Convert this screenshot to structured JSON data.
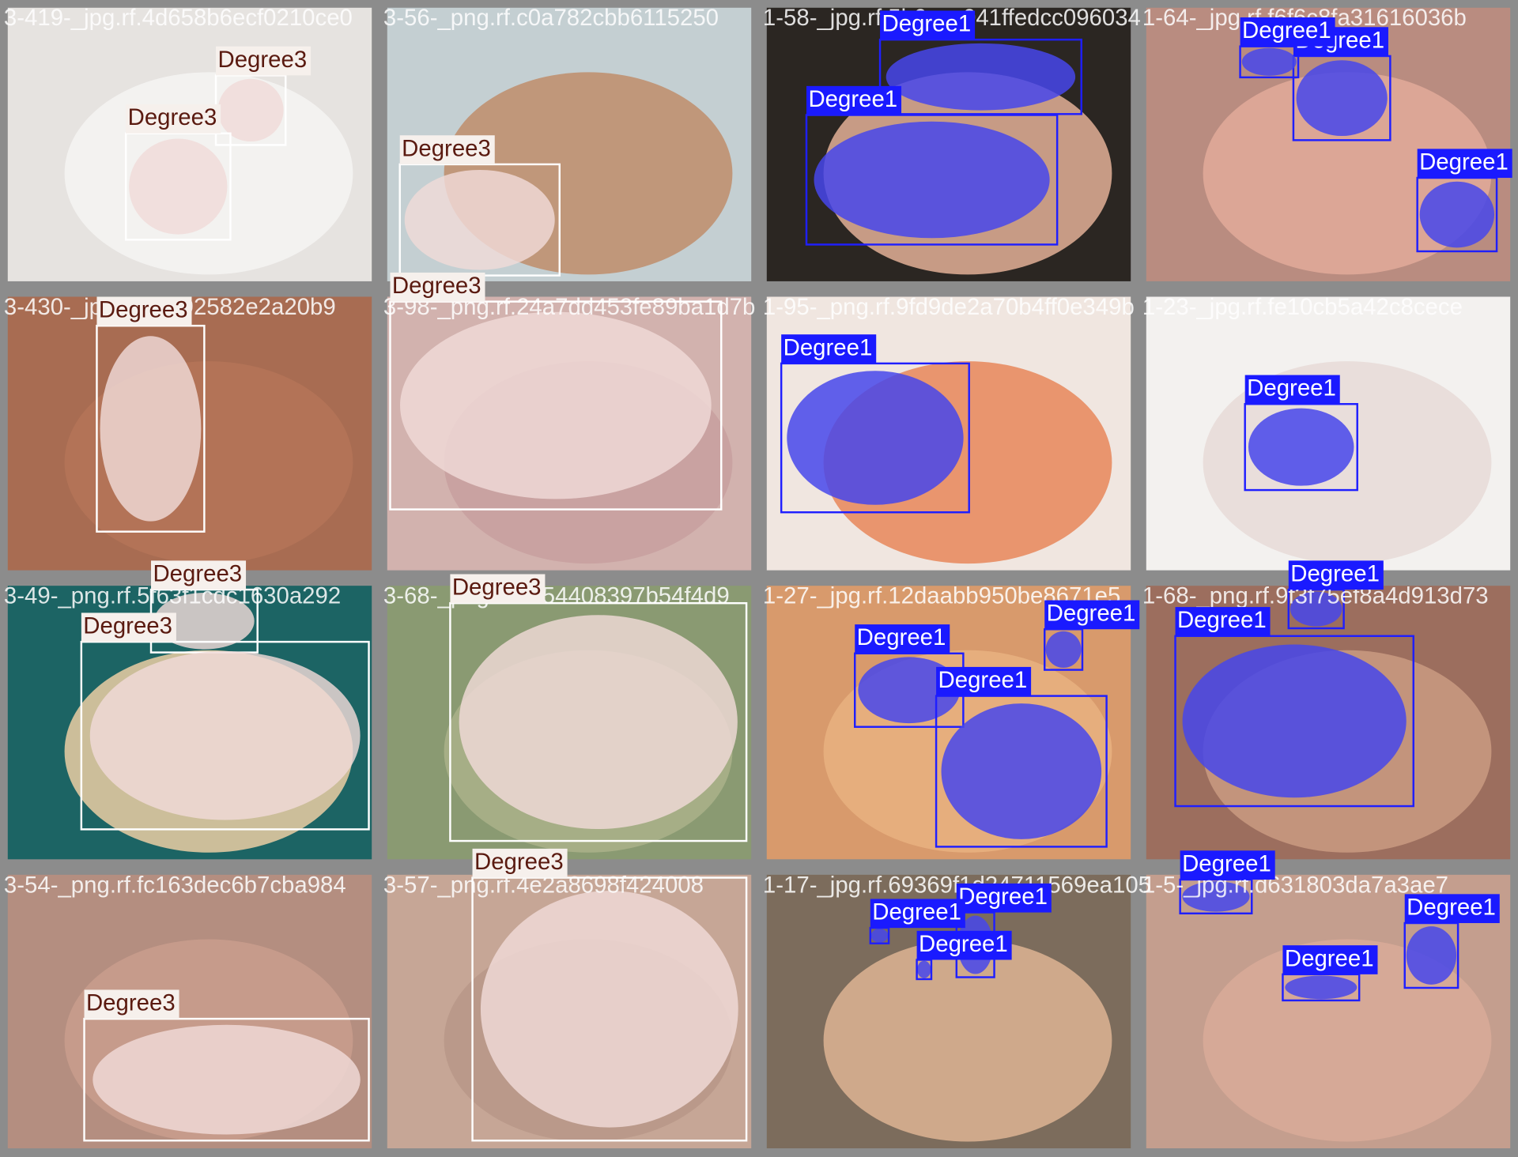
{
  "tiles": [
    {
      "filename": "3-419-_jpg.rf.4d658b6ecf0210ce0",
      "detections": [
        {
          "label": "Degree3"
        },
        {
          "label": "Degree3"
        }
      ]
    },
    {
      "filename": "3-56-_png.rf.c0a782cbb6115250",
      "detections": [
        {
          "label": "Degree3"
        }
      ]
    },
    {
      "filename": "1-58-_jpg.rf.5b0cec041ffedcc096034",
      "detections": [
        {
          "label": "Degree1"
        },
        {
          "label": "Degree1"
        }
      ]
    },
    {
      "filename": "1-64-_jpg.rf.f6f6c8fa31616036b",
      "detections": [
        {
          "label": "Degree1"
        },
        {
          "label": "Degree1"
        },
        {
          "label": "Degree1"
        }
      ]
    },
    {
      "filename": "3-430-_jpg.rf.9e392582e2a20b9",
      "detections": [
        {
          "label": "Degree3"
        }
      ]
    },
    {
      "filename": "3-98-_png.rf.24a7dd453fe89ba1d7b",
      "detections": [
        {
          "label": "Degree3"
        }
      ]
    },
    {
      "filename": "1-95-_png.rf.9fd9de2a70b4ff0e349b",
      "detections": [
        {
          "label": "Degree1"
        }
      ]
    },
    {
      "filename": "1-23-_jpg.rf.fe10cb5a42c8cece",
      "detections": [
        {
          "label": "Degree1"
        }
      ]
    },
    {
      "filename": "3-49-_png.rf.5f63f1cdc1630a292",
      "detections": [
        {
          "label": "Degree3"
        },
        {
          "label": "Degree3"
        }
      ]
    },
    {
      "filename": "3-68-_png.rf.ab54408397b54f4d9",
      "detections": [
        {
          "label": "Degree3"
        }
      ]
    },
    {
      "filename": "1-27-_jpg.rf.12daabb950be8671e5",
      "detections": [
        {
          "label": "Degree1"
        },
        {
          "label": "Degree1"
        },
        {
          "label": "Degree1"
        }
      ]
    },
    {
      "filename": "1-68-_png.rf.9f3f75ef8a4d913d73",
      "detections": [
        {
          "label": "Degree1"
        },
        {
          "label": "Degree1"
        }
      ]
    },
    {
      "filename": "3-54-_png.rf.fc163dec6b7cba984",
      "detections": [
        {
          "label": "Degree3"
        }
      ]
    },
    {
      "filename": "3-57-_png.rf.4e2a8698f424008",
      "detections": [
        {
          "label": "Degree3"
        }
      ]
    },
    {
      "filename": "1-17-_jpg.rf.69369f1d24711569ea105",
      "detections": [
        {
          "label": "Degree1"
        },
        {
          "label": "Degree1"
        },
        {
          "label": "Degree1"
        }
      ]
    },
    {
      "filename": "1-5-_jpg.rf.d631803da7a3ae7",
      "detections": [
        {
          "label": "Degree1"
        },
        {
          "label": "Degree1"
        },
        {
          "label": "Degree1"
        }
      ]
    }
  ]
}
